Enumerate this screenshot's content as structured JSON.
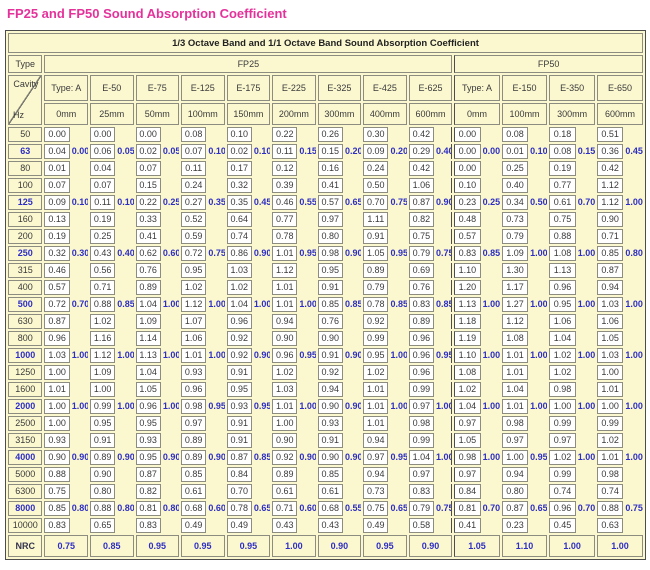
{
  "title": "FP25 and FP50 Sound Absorption Coefficient",
  "colors": {
    "title_magenta": "#E5329B",
    "octave_blue": "#2E2EC4",
    "table_cream": "#FBF8D0",
    "cell_white": "#FFFFFF",
    "grid_gray": "#8C8C80"
  },
  "table": {
    "band_header": "1/3 Octave Band and 1/1 Octave Band Sound Absorption Coefficient",
    "type_label": "Type",
    "corner": {
      "top": "Cavity",
      "bottom": "Hz"
    },
    "groups": [
      {
        "name": "FP25",
        "columns": [
          {
            "model": "Type: A",
            "cavity": "0mm"
          },
          {
            "model": "E-50",
            "cavity": "25mm"
          },
          {
            "model": "E-75",
            "cavity": "50mm"
          },
          {
            "model": "E-125",
            "cavity": "100mm"
          },
          {
            "model": "E-175",
            "cavity": "150mm"
          },
          {
            "model": "E-225",
            "cavity": "200mm"
          },
          {
            "model": "E-325",
            "cavity": "300mm"
          },
          {
            "model": "E-425",
            "cavity": "400mm"
          },
          {
            "model": "E-625",
            "cavity": "600mm"
          }
        ]
      },
      {
        "name": "FP50",
        "columns": [
          {
            "model": "Type: A",
            "cavity": "0mm"
          },
          {
            "model": "E-150",
            "cavity": "100mm"
          },
          {
            "model": "E-350",
            "cavity": "300mm"
          },
          {
            "model": "E-650",
            "cavity": "600mm"
          }
        ]
      }
    ],
    "rows": [
      {
        "hz": "50",
        "octave": false,
        "third": [
          "0.00",
          "0.00",
          "0.00",
          "0.08",
          "0.10",
          "0.22",
          "0.26",
          "0.30",
          "0.42",
          "0.00",
          "0.08",
          "0.18",
          "0.51"
        ]
      },
      {
        "hz": "63",
        "octave": true,
        "third": [
          "0.04",
          "0.06",
          "0.02",
          "0.07",
          "0.02",
          "0.11",
          "0.15",
          "0.09",
          "0.29",
          "0.00",
          "0.01",
          "0.08",
          "0.36"
        ],
        "full": [
          "0.00",
          "0.05",
          "0.05",
          "0.10",
          "0.10",
          "0.15",
          "0.20",
          "0.20",
          "0.40",
          "0.00",
          "0.10",
          "0.15",
          "0.45"
        ]
      },
      {
        "hz": "80",
        "octave": false,
        "third": [
          "0.01",
          "0.04",
          "0.07",
          "0.11",
          "0.17",
          "0.12",
          "0.16",
          "0.24",
          "0.42",
          "0.00",
          "0.25",
          "0.19",
          "0.42"
        ]
      },
      {
        "hz": "100",
        "octave": false,
        "third": [
          "0.07",
          "0.07",
          "0.15",
          "0.24",
          "0.32",
          "0.39",
          "0.41",
          "0.50",
          "1.06",
          "0.10",
          "0.40",
          "0.77",
          "1.12"
        ]
      },
      {
        "hz": "125",
        "octave": true,
        "third": [
          "0.09",
          "0.11",
          "0.22",
          "0.27",
          "0.35",
          "0.46",
          "0.57",
          "0.70",
          "0.87",
          "0.23",
          "0.34",
          "0.61",
          "1.12"
        ],
        "full": [
          "0.10",
          "0.10",
          "0.25",
          "0.35",
          "0.45",
          "0.55",
          "0.65",
          "0.75",
          "0.90",
          "0.25",
          "0.50",
          "0.70",
          "1.00"
        ]
      },
      {
        "hz": "160",
        "octave": false,
        "third": [
          "0.13",
          "0.19",
          "0.33",
          "0.52",
          "0.64",
          "0.77",
          "0.97",
          "1.11",
          "0.82",
          "0.48",
          "0.73",
          "0.75",
          "0.90"
        ]
      },
      {
        "hz": "200",
        "octave": false,
        "third": [
          "0.19",
          "0.25",
          "0.41",
          "0.59",
          "0.74",
          "0.78",
          "0.80",
          "0.91",
          "0.75",
          "0.57",
          "0.79",
          "0.88",
          "0.71"
        ]
      },
      {
        "hz": "250",
        "octave": true,
        "third": [
          "0.32",
          "0.43",
          "0.62",
          "0.72",
          "0.86",
          "1.01",
          "0.98",
          "1.05",
          "0.79",
          "0.83",
          "1.09",
          "1.08",
          "0.85"
        ],
        "full": [
          "0.30",
          "0.40",
          "0.60",
          "0.75",
          "0.90",
          "0.95",
          "0.90",
          "0.95",
          "0.75",
          "0.85",
          "1.00",
          "1.00",
          "0.80"
        ]
      },
      {
        "hz": "315",
        "octave": false,
        "third": [
          "0.46",
          "0.56",
          "0.76",
          "0.95",
          "1.03",
          "1.12",
          "0.95",
          "0.89",
          "0.69",
          "1.10",
          "1.30",
          "1.13",
          "0.87"
        ]
      },
      {
        "hz": "400",
        "octave": false,
        "third": [
          "0.57",
          "0.71",
          "0.89",
          "1.02",
          "1.02",
          "1.01",
          "0.91",
          "0.79",
          "0.76",
          "1.20",
          "1.17",
          "0.96",
          "0.94"
        ]
      },
      {
        "hz": "500",
        "octave": true,
        "third": [
          "0.72",
          "0.88",
          "1.04",
          "1.12",
          "1.04",
          "1.01",
          "0.85",
          "0.78",
          "0.83",
          "1.13",
          "1.27",
          "0.95",
          "1.03"
        ],
        "full": [
          "0.70",
          "0.85",
          "1.00",
          "1.00",
          "1.00",
          "1.00",
          "0.85",
          "0.85",
          "0.85",
          "1.00",
          "1.00",
          "1.00",
          "1.00"
        ]
      },
      {
        "hz": "630",
        "octave": false,
        "third": [
          "0.87",
          "1.02",
          "1.09",
          "1.07",
          "0.96",
          "0.94",
          "0.76",
          "0.92",
          "0.89",
          "1.18",
          "1.12",
          "1.06",
          "1.06"
        ]
      },
      {
        "hz": "800",
        "octave": false,
        "third": [
          "0.96",
          "1.16",
          "1.14",
          "1.06",
          "0.92",
          "0.90",
          "0.90",
          "0.99",
          "0.96",
          "1.19",
          "1.08",
          "1.04",
          "1.05"
        ]
      },
      {
        "hz": "1000",
        "octave": true,
        "third": [
          "1.03",
          "1.12",
          "1.13",
          "1.01",
          "0.92",
          "0.96",
          "0.91",
          "0.95",
          "0.96",
          "1.10",
          "1.01",
          "1.02",
          "1.03"
        ],
        "full": [
          "1.00",
          "1.00",
          "1.00",
          "1.00",
          "0.90",
          "0.95",
          "0.90",
          "1.00",
          "0.95",
          "1.00",
          "1.00",
          "1.00",
          "1.00"
        ]
      },
      {
        "hz": "1250",
        "octave": false,
        "third": [
          "1.00",
          "1.09",
          "1.04",
          "0.93",
          "0.91",
          "1.02",
          "0.92",
          "1.02",
          "0.96",
          "1.08",
          "1.01",
          "1.02",
          "1.00"
        ]
      },
      {
        "hz": "1600",
        "octave": false,
        "third": [
          "1.01",
          "1.00",
          "1.05",
          "0.96",
          "0.95",
          "1.03",
          "0.94",
          "1.01",
          "0.99",
          "1.02",
          "1.04",
          "0.98",
          "1.01"
        ]
      },
      {
        "hz": "2000",
        "octave": true,
        "third": [
          "1.00",
          "0.99",
          "0.96",
          "0.98",
          "0.93",
          "1.01",
          "0.90",
          "1.01",
          "0.97",
          "1.04",
          "1.01",
          "1.00",
          "1.00"
        ],
        "full": [
          "1.00",
          "1.00",
          "1.00",
          "0.95",
          "0.95",
          "1.00",
          "0.90",
          "1.00",
          "1.00",
          "1.00",
          "1.00",
          "1.00",
          "1.00"
        ]
      },
      {
        "hz": "2500",
        "octave": false,
        "third": [
          "1.00",
          "0.95",
          "0.95",
          "0.97",
          "0.91",
          "1.00",
          "0.93",
          "1.01",
          "0.98",
          "0.97",
          "0.98",
          "0.99",
          "0.99"
        ]
      },
      {
        "hz": "3150",
        "octave": false,
        "third": [
          "0.93",
          "0.91",
          "0.93",
          "0.89",
          "0.91",
          "0.90",
          "0.91",
          "0.94",
          "0.99",
          "1.05",
          "0.97",
          "0.97",
          "1.02"
        ]
      },
      {
        "hz": "4000",
        "octave": true,
        "third": [
          "0.90",
          "0.89",
          "0.95",
          "0.89",
          "0.87",
          "0.92",
          "0.90",
          "0.97",
          "1.04",
          "0.98",
          "1.00",
          "1.02",
          "1.01"
        ],
        "full": [
          "0.90",
          "0.90",
          "0.90",
          "0.90",
          "0.85",
          "0.90",
          "0.90",
          "0.95",
          "1.00",
          "1.00",
          "0.95",
          "1.00",
          "1.00"
        ]
      },
      {
        "hz": "5000",
        "octave": false,
        "third": [
          "0.88",
          "0.90",
          "0.87",
          "0.85",
          "0.84",
          "0.89",
          "0.85",
          "0.94",
          "0.97",
          "0.97",
          "0.94",
          "0.99",
          "0.98"
        ]
      },
      {
        "hz": "6300",
        "octave": false,
        "third": [
          "0.75",
          "0.80",
          "0.82",
          "0.61",
          "0.70",
          "0.61",
          "0.61",
          "0.73",
          "0.83",
          "0.84",
          "0.80",
          "0.74",
          "0.74"
        ]
      },
      {
        "hz": "8000",
        "octave": true,
        "third": [
          "0.85",
          "0.88",
          "0.81",
          "0.68",
          "0.78",
          "0.71",
          "0.68",
          "0.75",
          "0.79",
          "0.81",
          "0.87",
          "0.96",
          "0.88"
        ],
        "full": [
          "0.80",
          "0.80",
          "0.80",
          "0.60",
          "0.65",
          "0.60",
          "0.55",
          "0.65",
          "0.75",
          "0.70",
          "0.65",
          "0.70",
          "0.75"
        ]
      },
      {
        "hz": "10000",
        "octave": false,
        "third": [
          "0.83",
          "0.65",
          "0.83",
          "0.49",
          "0.49",
          "0.43",
          "0.43",
          "0.49",
          "0.58",
          "0.41",
          "0.23",
          "0.45",
          "0.63"
        ]
      }
    ],
    "nrc": {
      "label": "NRC",
      "values": [
        "0.75",
        "0.85",
        "0.95",
        "0.95",
        "0.95",
        "1.00",
        "0.90",
        "0.95",
        "0.90",
        "1.05",
        "1.10",
        "1.00",
        "1.00"
      ]
    }
  }
}
